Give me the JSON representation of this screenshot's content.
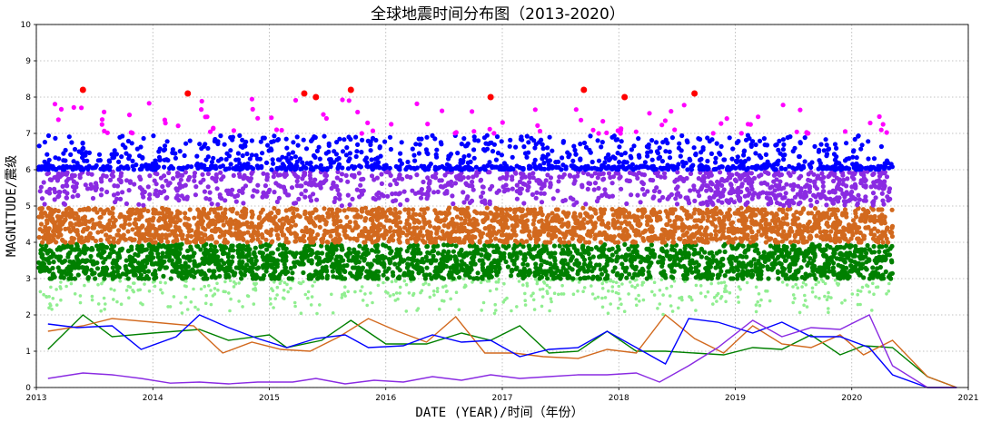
{
  "chart_data": {
    "type": "scatter",
    "title": "全球地震时间分布图（2013-2020）",
    "xlabel": "DATE (YEAR)/时间（年份）",
    "ylabel": "MAGNITUDE/震级",
    "xlim": [
      2013,
      2021
    ],
    "ylim": [
      0,
      10
    ],
    "x_ticks": [
      "2013",
      "2014",
      "2015",
      "2016",
      "2017",
      "2018",
      "2019",
      "2020",
      "2021"
    ],
    "y_ticks": [
      "0",
      "1",
      "2",
      "3",
      "4",
      "5",
      "6",
      "7",
      "8",
      "9",
      "10"
    ],
    "grid": true,
    "scatter_bands": [
      {
        "magnitude_range": [
          2.0,
          3.0
        ],
        "color": "#90ee90",
        "description": "sparse light green",
        "sparse": true
      },
      {
        "magnitude_range": [
          3.0,
          4.0
        ],
        "color": "#008000",
        "description": "dense green"
      },
      {
        "magnitude_range": [
          4.0,
          5.0
        ],
        "color": "#d2691e",
        "description": "dense orange"
      },
      {
        "magnitude_range": [
          5.0,
          6.0
        ],
        "color": "#8a2be2",
        "description": "purple"
      },
      {
        "magnitude_range": [
          6.0,
          7.0
        ],
        "color": "#0000ff",
        "description": "blue"
      },
      {
        "magnitude_range": [
          7.0,
          8.0
        ],
        "color": "#ff00ff",
        "description": "magenta sparse",
        "sparse": true
      }
    ],
    "red_points": [
      {
        "x": 2013.4,
        "y": 8.2
      },
      {
        "x": 2014.3,
        "y": 8.1
      },
      {
        "x": 2015.3,
        "y": 8.1
      },
      {
        "x": 2015.4,
        "y": 8.0
      },
      {
        "x": 2015.7,
        "y": 8.2
      },
      {
        "x": 2016.9,
        "y": 8.0
      },
      {
        "x": 2017.7,
        "y": 8.2
      },
      {
        "x": 2018.05,
        "y": 8.0
      },
      {
        "x": 2018.65,
        "y": 8.1
      }
    ],
    "series": [
      {
        "color": "#008000",
        "x": [
          2013.1,
          2013.4,
          2013.65,
          2014.0,
          2014.4,
          2014.65,
          2015.0,
          2015.15,
          2015.45,
          2015.7,
          2016.0,
          2016.35,
          2016.65,
          2016.9,
          2017.15,
          2017.4,
          2017.65,
          2017.9,
          2018.15,
          2018.4,
          2018.65,
          2018.9,
          2019.15,
          2019.4,
          2019.65,
          2019.9,
          2020.1,
          2020.35,
          2020.65,
          2020.9
        ],
        "y": [
          1.05,
          2.0,
          1.4,
          1.5,
          1.6,
          1.3,
          1.45,
          1.1,
          1.3,
          1.85,
          1.2,
          1.2,
          1.5,
          1.3,
          1.7,
          0.95,
          1.0,
          1.55,
          1.0,
          1.0,
          0.95,
          0.9,
          1.1,
          1.05,
          1.45,
          0.9,
          1.15,
          1.1,
          0.3,
          0.0
        ]
      },
      {
        "color": "#d2691e",
        "x": [
          2013.1,
          2013.4,
          2013.65,
          2014.0,
          2014.35,
          2014.6,
          2014.85,
          2015.1,
          2015.35,
          2015.6,
          2015.85,
          2016.1,
          2016.35,
          2016.6,
          2016.85,
          2017.1,
          2017.35,
          2017.65,
          2017.9,
          2018.15,
          2018.4,
          2018.65,
          2018.9,
          2019.15,
          2019.4,
          2019.65,
          2019.9,
          2020.1,
          2020.35,
          2020.65,
          2020.9
        ],
        "y": [
          1.55,
          1.7,
          1.9,
          1.8,
          1.7,
          0.95,
          1.25,
          1.05,
          1.0,
          1.4,
          1.9,
          1.55,
          1.25,
          1.95,
          0.95,
          0.95,
          0.85,
          0.8,
          1.05,
          0.95,
          2.0,
          1.35,
          0.95,
          1.7,
          1.2,
          1.1,
          1.45,
          0.9,
          1.3,
          0.3,
          0.0
        ]
      },
      {
        "color": "#0000ff",
        "x": [
          2013.1,
          2013.35,
          2013.65,
          2013.9,
          2014.2,
          2014.4,
          2014.65,
          2014.9,
          2015.15,
          2015.4,
          2015.65,
          2015.85,
          2016.15,
          2016.4,
          2016.65,
          2016.9,
          2017.15,
          2017.4,
          2017.65,
          2017.9,
          2018.15,
          2018.4,
          2018.6,
          2018.85,
          2019.15,
          2019.4,
          2019.65,
          2019.9,
          2020.15,
          2020.35,
          2020.65,
          2020.9
        ],
        "y": [
          1.75,
          1.65,
          1.7,
          1.05,
          1.4,
          2.0,
          1.65,
          1.35,
          1.1,
          1.35,
          1.45,
          1.1,
          1.15,
          1.45,
          1.25,
          1.3,
          0.85,
          1.05,
          1.1,
          1.55,
          1.1,
          0.65,
          1.9,
          1.8,
          1.5,
          1.8,
          1.4,
          1.4,
          1.1,
          0.35,
          0.0,
          0.0
        ]
      },
      {
        "color": "#8a2be2",
        "x": [
          2013.1,
          2013.4,
          2013.65,
          2013.9,
          2014.15,
          2014.4,
          2014.65,
          2014.9,
          2015.2,
          2015.4,
          2015.65,
          2015.9,
          2016.15,
          2016.4,
          2016.65,
          2016.9,
          2017.15,
          2017.4,
          2017.65,
          2017.9,
          2018.15,
          2018.35,
          2018.6,
          2018.85,
          2019.15,
          2019.4,
          2019.65,
          2019.9,
          2020.15,
          2020.35,
          2020.65,
          2020.9
        ],
        "y": [
          0.25,
          0.4,
          0.35,
          0.25,
          0.12,
          0.15,
          0.1,
          0.15,
          0.15,
          0.25,
          0.1,
          0.2,
          0.15,
          0.3,
          0.2,
          0.35,
          0.25,
          0.3,
          0.35,
          0.35,
          0.4,
          0.15,
          0.6,
          1.1,
          1.85,
          1.4,
          1.65,
          1.6,
          2.0,
          0.6,
          0.0,
          0.0
        ]
      }
    ]
  }
}
